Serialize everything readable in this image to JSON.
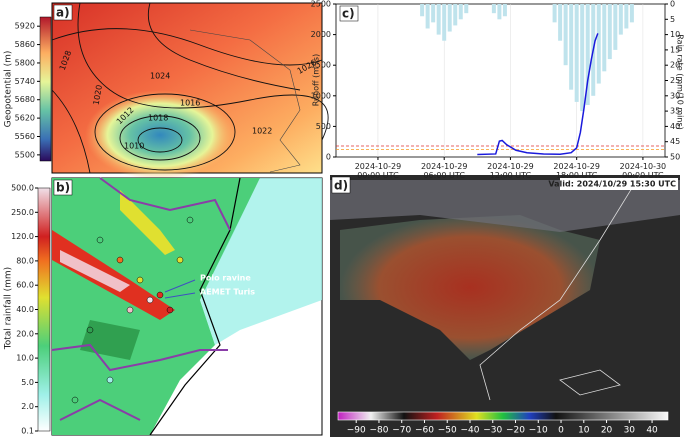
{
  "panels": {
    "a": {
      "label": "a)",
      "colorbar_label": "Geopotential (m)",
      "colorbar_lim": [
        5480,
        5950
      ],
      "colorbar_ticks": [
        5500,
        5560,
        5620,
        5680,
        5740,
        5800,
        5860,
        5920
      ],
      "contour_labels": [
        "1028",
        "1024",
        "1026",
        "1020",
        "1016",
        "1012",
        "1018",
        "1010",
        "1022"
      ]
    },
    "b": {
      "label": "b)",
      "colorbar_label": "Total rainfall (mm)",
      "colorbar_ticks": [
        {
          "value": 0.1,
          "label": "0.1"
        },
        {
          "value": 2,
          "label": "2.0"
        },
        {
          "value": 5,
          "label": "5.0"
        },
        {
          "value": 10,
          "label": "10.0"
        },
        {
          "value": 20,
          "label": "20.0"
        },
        {
          "value": 40,
          "label": "40.0"
        },
        {
          "value": 60,
          "label": "60.0"
        },
        {
          "value": 80,
          "label": "80.0"
        },
        {
          "value": 120,
          "label": "120.0"
        },
        {
          "value": 250,
          "label": "250.0"
        },
        {
          "value": 500,
          "label": "500.0"
        }
      ],
      "annotations": [
        "Poio ravine",
        "AEMET Turis"
      ]
    },
    "d": {
      "label": "d)",
      "valid": "Valid: 2024/10/29 15:30 UTC",
      "colorbar_lim": [
        -98,
        47
      ],
      "colorbar_ticks": [
        {
          "value": -90,
          "label": "−90"
        },
        {
          "value": -80,
          "label": "−80"
        },
        {
          "value": -70,
          "label": "−70"
        },
        {
          "value": -60,
          "label": "−60"
        },
        {
          "value": -50,
          "label": "−50"
        },
        {
          "value": -40,
          "label": "−40"
        },
        {
          "value": -30,
          "label": "−30"
        },
        {
          "value": -20,
          "label": "−20"
        },
        {
          "value": -10,
          "label": "−10"
        },
        0,
        10,
        20,
        30,
        40
      ]
    }
  },
  "chart_data": {
    "type": "line",
    "panel_label": "c)",
    "y_label": "Runoff (m³/s)",
    "y2_label": "Rain rate (mm/10 mins)",
    "xlim": [
      "2024-10-28 20:12",
      "2024-10-30 02:00"
    ],
    "xticks": [
      {
        "value": "2024-10-29 00:00",
        "label": "2024-10-29\n00:00 UTC"
      },
      {
        "value": "2024-10-29 06:00",
        "label": "2024-10-29\n06:00 UTC"
      },
      {
        "value": "2024-10-29 12:00",
        "label": "2024-10-29\n12:00 UTC"
      },
      {
        "value": "2024-10-29 18:00",
        "label": "2024-10-29\n18:00 UTC"
      },
      {
        "value": "2024-10-30 00:00",
        "label": "2024-10-30\n00:00 UTC"
      }
    ],
    "ylim": [
      0,
      2500
    ],
    "yticks": [
      0,
      500,
      1000,
      1500,
      2000,
      2500
    ],
    "y2lim": [
      0,
      50
    ],
    "y2ticks": [
      0,
      5,
      10,
      15,
      20,
      25,
      30,
      35,
      40,
      45,
      50
    ],
    "y2_inverted": true,
    "thresholds": [
      {
        "value": 180,
        "color": "#e03030"
      },
      {
        "value": 120,
        "color": "#f59a20"
      }
    ],
    "series": [
      {
        "name": "Runoff",
        "color": "#1a1adc",
        "x": [
          "2024-10-29 09:00",
          "2024-10-29 10:40",
          "2024-10-29 11:00",
          "2024-10-29 11:15",
          "2024-10-29 11:40",
          "2024-10-29 12:30",
          "2024-10-29 13:30",
          "2024-10-29 15:00",
          "2024-10-29 16:30",
          "2024-10-29 17:30",
          "2024-10-29 18:00",
          "2024-10-29 18:20",
          "2024-10-29 18:40",
          "2024-10-29 19:00",
          "2024-10-29 19:20",
          "2024-10-29 19:40",
          "2024-10-29 19:55"
        ],
        "values": [
          40,
          50,
          260,
          270,
          200,
          110,
          70,
          50,
          45,
          70,
          150,
          400,
          800,
          1250,
          1600,
          1900,
          2020
        ]
      },
      {
        "name": "Rain rate",
        "color": "#bfe3ec",
        "axis": "y2",
        "x": [
          "2024-10-29 04:00",
          "2024-10-29 04:30",
          "2024-10-29 05:00",
          "2024-10-29 05:30",
          "2024-10-29 06:00",
          "2024-10-29 06:30",
          "2024-10-29 07:00",
          "2024-10-29 07:30",
          "2024-10-29 08:00",
          "2024-10-29 10:30",
          "2024-10-29 11:00",
          "2024-10-29 11:30",
          "2024-10-29 16:00",
          "2024-10-29 16:30",
          "2024-10-29 17:00",
          "2024-10-29 17:30",
          "2024-10-29 18:00",
          "2024-10-29 18:30",
          "2024-10-29 19:00",
          "2024-10-29 19:30",
          "2024-10-29 20:00",
          "2024-10-29 20:30",
          "2024-10-29 21:00",
          "2024-10-29 21:30",
          "2024-10-29 22:00",
          "2024-10-29 22:30",
          "2024-10-29 23:00"
        ],
        "values": [
          4,
          8,
          6,
          10,
          12,
          9,
          7,
          5,
          3,
          3,
          5,
          4,
          6,
          12,
          20,
          28,
          32,
          35,
          33,
          30,
          26,
          22,
          18,
          15,
          10,
          8,
          6
        ]
      }
    ]
  }
}
